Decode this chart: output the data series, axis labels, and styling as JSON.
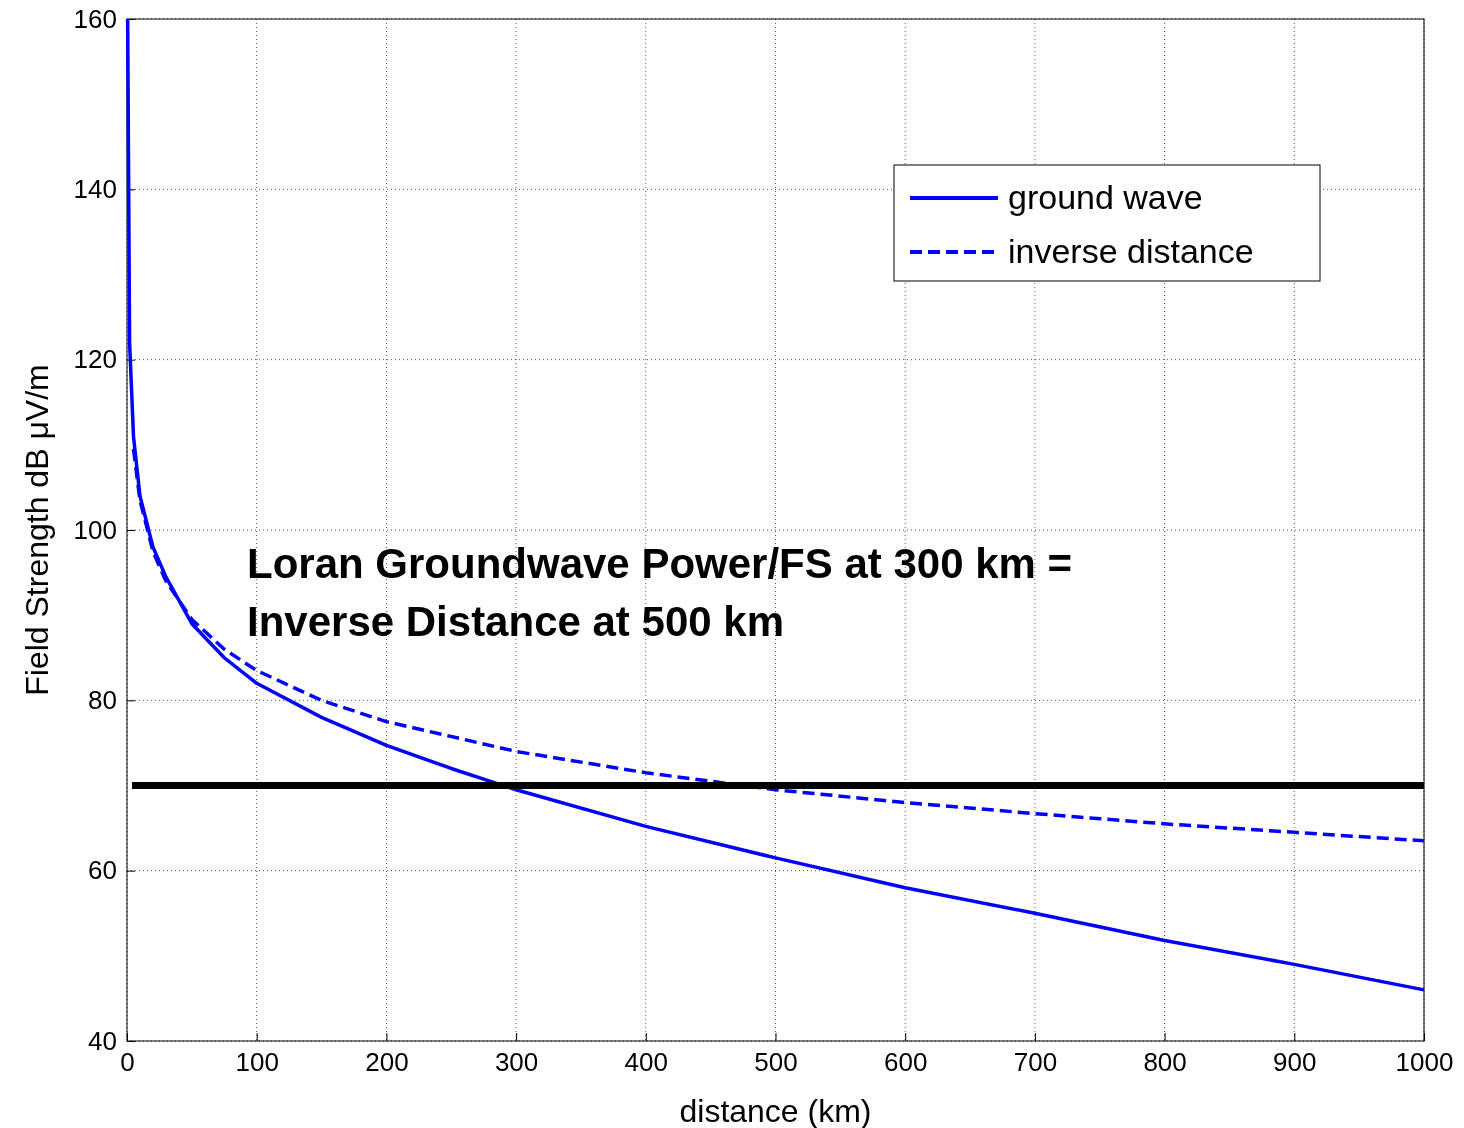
{
  "chart_data": {
    "type": "line",
    "xlabel": "distance (km)",
    "ylabel": "Field Strength dB μV/m",
    "xlim": [
      0,
      1000
    ],
    "xticks": [
      0,
      100,
      200,
      300,
      400,
      500,
      600,
      700,
      800,
      900,
      1000
    ],
    "ylim": [
      40,
      160
    ],
    "yticks": [
      40,
      60,
      80,
      100,
      120,
      140,
      160
    ],
    "grid": true,
    "legend": "top right",
    "series": [
      {
        "name": "ground wave",
        "color": "#0000ff",
        "line_style": "solid",
        "x": [
          0.5,
          2,
          5,
          10,
          20,
          30,
          50,
          75,
          100,
          150,
          200,
          250,
          300,
          400,
          500,
          600,
          700,
          800,
          900,
          1000
        ],
        "values": [
          160,
          122,
          111,
          104,
          98,
          94.5,
          89,
          85,
          82,
          78,
          74.7,
          72,
          69.5,
          65.2,
          61.5,
          58,
          55,
          51.8,
          49,
          46
        ]
      },
      {
        "name": "inverse distance",
        "color": "#0000ff",
        "line_style": "dashed",
        "x": [
          5,
          10,
          20,
          30,
          50,
          75,
          100,
          150,
          200,
          300,
          400,
          500,
          600,
          700,
          800,
          900,
          1000
        ],
        "values": [
          109.5,
          103.5,
          97.5,
          94,
          89.5,
          86,
          83.5,
          80,
          77.5,
          74,
          71.5,
          69.5,
          68,
          66.7,
          65.5,
          64.5,
          63.5
        ]
      }
    ],
    "ref_lines": [
      {
        "axis": "y",
        "value": 70,
        "color": "#000000"
      }
    ],
    "annotations": [
      "Loran Groundwave Power/FS at 300 km =\nInverse Distance at 500 km"
    ]
  }
}
